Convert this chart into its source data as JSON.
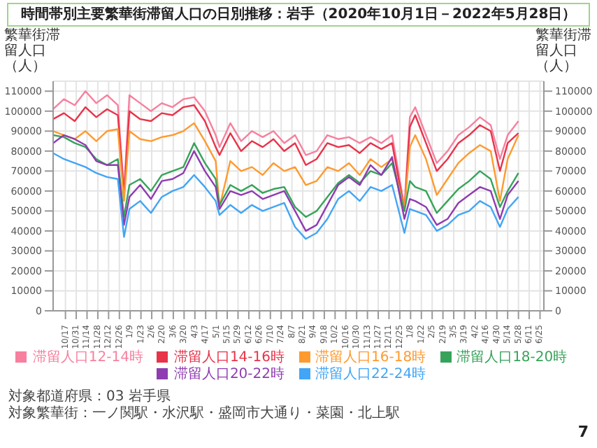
{
  "chart_data": {
    "type": "line",
    "title": "時間帯別主要繁華街滞留人口の日別推移：岩手（2020年10月1日－2022年5月28日）",
    "ylabel": "繁華街滞留人口（人）",
    "y2label": "繁華街滞留人口（人）",
    "x": [
      "2020-10-01",
      "2020-10-15",
      "2020-10-29",
      "2020-11-12",
      "2020-11-26",
      "2020-12-10",
      "2020-12-24",
      "2021-01-01",
      "2021-01-08",
      "2021-01-22",
      "2021-02-05",
      "2021-02-19",
      "2021-03-05",
      "2021-03-19",
      "2021-04-02",
      "2021-04-16",
      "2021-04-30",
      "2021-05-05",
      "2021-05-19",
      "2021-06-02",
      "2021-06-16",
      "2021-06-30",
      "2021-07-14",
      "2021-07-28",
      "2021-08-11",
      "2021-08-25",
      "2021-09-08",
      "2021-09-22",
      "2021-10-06",
      "2021-10-20",
      "2021-11-03",
      "2021-11-17",
      "2021-12-01",
      "2021-12-15",
      "2021-12-31",
      "2022-01-07",
      "2022-01-14",
      "2022-01-28",
      "2022-02-11",
      "2022-02-25",
      "2022-03-11",
      "2022-03-25",
      "2022-04-08",
      "2022-04-22",
      "2022-05-04",
      "2022-05-14",
      "2022-05-28"
    ],
    "series": [
      {
        "name": "滞留人口12-14時",
        "color": "#f7809f",
        "values": [
          101000,
          106000,
          103000,
          110000,
          104000,
          108000,
          103000,
          60000,
          108000,
          104000,
          100000,
          104000,
          102000,
          106000,
          107000,
          100000,
          88000,
          82000,
          94000,
          85000,
          90000,
          87000,
          90000,
          84000,
          88000,
          78000,
          80000,
          88000,
          86000,
          87000,
          84000,
          87000,
          84000,
          88000,
          52000,
          97000,
          102000,
          88000,
          74000,
          80000,
          88000,
          92000,
          97000,
          93000,
          76000,
          88000,
          95000
        ]
      },
      {
        "name": "滞留人口14-16時",
        "color": "#e83349",
        "values": [
          96000,
          99000,
          95000,
          102000,
          97000,
          101000,
          98000,
          58000,
          100000,
          96000,
          95000,
          99000,
          98000,
          102000,
          103000,
          95000,
          82000,
          78000,
          89000,
          80000,
          85000,
          82000,
          86000,
          80000,
          84000,
          73000,
          76000,
          84000,
          82000,
          83000,
          79000,
          84000,
          81000,
          84000,
          50000,
          92000,
          98000,
          84000,
          70000,
          76000,
          84000,
          88000,
          93000,
          90000,
          70000,
          84000,
          89000
        ]
      },
      {
        "name": "滞留人口16-18時",
        "color": "#ff9a2e",
        "values": [
          90000,
          88000,
          86000,
          90000,
          85000,
          90000,
          91000,
          55000,
          90000,
          86000,
          85000,
          87000,
          88000,
          90000,
          94000,
          85000,
          75000,
          52000,
          75000,
          70000,
          72000,
          68000,
          74000,
          70000,
          72000,
          63000,
          65000,
          72000,
          70000,
          74000,
          68000,
          76000,
          72000,
          76000,
          51000,
          82000,
          88000,
          76000,
          58000,
          66000,
          74000,
          79000,
          83000,
          80000,
          55000,
          76000,
          88000
        ]
      },
      {
        "name": "滞留人口18-20時",
        "color": "#37a35a",
        "values": [
          88000,
          87000,
          84000,
          82000,
          76000,
          73000,
          76000,
          47000,
          63000,
          66000,
          60000,
          68000,
          70000,
          72000,
          84000,
          74000,
          66000,
          53000,
          63000,
          60000,
          63000,
          59000,
          61000,
          62000,
          52000,
          47000,
          50000,
          57000,
          64000,
          68000,
          64000,
          70000,
          68000,
          74000,
          50000,
          65000,
          62000,
          60000,
          49000,
          55000,
          61000,
          65000,
          70000,
          66000,
          52000,
          60000,
          69000
        ]
      },
      {
        "name": "滞留人口20-22時",
        "color": "#8e3cb0",
        "values": [
          84000,
          88000,
          86000,
          83000,
          75000,
          73000,
          73000,
          43000,
          57000,
          63000,
          56000,
          65000,
          66000,
          69000,
          80000,
          70000,
          62000,
          51000,
          60000,
          58000,
          60000,
          56000,
          58000,
          60000,
          50000,
          40000,
          43000,
          53000,
          63000,
          67000,
          63000,
          73000,
          68000,
          77000,
          46000,
          56000,
          55000,
          52000,
          43000,
          46000,
          54000,
          58000,
          62000,
          60000,
          46000,
          58000,
          65000
        ]
      },
      {
        "name": "滞留人口22-24時",
        "color": "#42a5f5",
        "values": [
          79000,
          76000,
          74000,
          72000,
          69000,
          67000,
          66000,
          37000,
          51000,
          55000,
          49000,
          57000,
          60000,
          62000,
          68000,
          62000,
          55000,
          48000,
          53000,
          49000,
          53000,
          50000,
          52000,
          54000,
          42000,
          36000,
          39000,
          46000,
          56000,
          60000,
          55000,
          62000,
          60000,
          63000,
          39000,
          51000,
          50000,
          48000,
          40000,
          43000,
          48000,
          50000,
          55000,
          52000,
          42000,
          51000,
          57000
        ]
      }
    ],
    "xlim": [
      "2020-10-01",
      "2022-06-30"
    ],
    "xticks": [
      {
        "value": "2020-10-17",
        "label": "10/17"
      },
      {
        "value": "2020-10-31",
        "label": "10/31"
      },
      {
        "value": "2020-11-14",
        "label": "11/14"
      },
      {
        "value": "2020-11-28",
        "label": "11/28"
      },
      {
        "value": "2020-12-12",
        "label": "12/12"
      },
      {
        "value": "2020-12-26",
        "label": "12/26"
      },
      {
        "value": "2021-01-09",
        "label": "1/9"
      },
      {
        "value": "2021-01-23",
        "label": "1/23"
      },
      {
        "value": "2021-02-06",
        "label": "2/6"
      },
      {
        "value": "2021-02-20",
        "label": "2/20"
      },
      {
        "value": "2021-03-06",
        "label": "3/6"
      },
      {
        "value": "2021-03-20",
        "label": "3/20"
      },
      {
        "value": "2021-04-03",
        "label": "4/3"
      },
      {
        "value": "2021-04-17",
        "label": "4/17"
      },
      {
        "value": "2021-05-01",
        "label": "5/1"
      },
      {
        "value": "2021-05-15",
        "label": "5/15"
      },
      {
        "value": "2021-05-29",
        "label": "5/29"
      },
      {
        "value": "2021-06-12",
        "label": "6/12"
      },
      {
        "value": "2021-06-26",
        "label": "6/26"
      },
      {
        "value": "2021-07-10",
        "label": "7/10"
      },
      {
        "value": "2021-07-24",
        "label": "7/24"
      },
      {
        "value": "2021-08-07",
        "label": "8/7"
      },
      {
        "value": "2021-08-21",
        "label": "8/21"
      },
      {
        "value": "2021-09-04",
        "label": "9/4"
      },
      {
        "value": "2021-09-18",
        "label": "9/18"
      },
      {
        "value": "2021-10-02",
        "label": "10/2"
      },
      {
        "value": "2021-10-16",
        "label": "10/16"
      },
      {
        "value": "2021-10-30",
        "label": "10/30"
      },
      {
        "value": "2021-11-13",
        "label": "11/13"
      },
      {
        "value": "2021-11-27",
        "label": "11/27"
      },
      {
        "value": "2021-12-11",
        "label": "12/11"
      },
      {
        "value": "2021-12-25",
        "label": "12/25"
      },
      {
        "value": "2022-01-08",
        "label": "1/8"
      },
      {
        "value": "2022-01-22",
        "label": "1/22"
      },
      {
        "value": "2022-02-05",
        "label": "2/5"
      },
      {
        "value": "2022-02-19",
        "label": "2/19"
      },
      {
        "value": "2022-03-05",
        "label": "3/5"
      },
      {
        "value": "2022-03-19",
        "label": "3/19"
      },
      {
        "value": "2022-04-02",
        "label": "4/2"
      },
      {
        "value": "2022-04-16",
        "label": "4/16"
      },
      {
        "value": "2022-04-30",
        "label": "4/30"
      },
      {
        "value": "2022-05-14",
        "label": "5/14"
      },
      {
        "value": "2022-05-28",
        "label": "5/28"
      },
      {
        "value": "2022-06-11",
        "label": "6/11"
      },
      {
        "value": "2022-06-25",
        "label": "6/25"
      }
    ],
    "ylim": [
      0,
      115000
    ],
    "yticks": [
      0,
      10000,
      20000,
      30000,
      40000,
      50000,
      60000,
      70000,
      80000,
      90000,
      100000,
      110000
    ],
    "y2lim": [
      0,
      115000
    ],
    "y2ticks": [
      0,
      10000,
      20000,
      30000,
      40000,
      50000,
      60000,
      70000,
      80000,
      90000,
      100000,
      110000
    ],
    "grid": true,
    "legend": "bottom",
    "annotations": [
      "対象都道府県：03 岩手県",
      "対象繁華街：一ノ関駅・水沢駅・盛岡市大通り・菜園・北上駅",
      "7"
    ]
  }
}
